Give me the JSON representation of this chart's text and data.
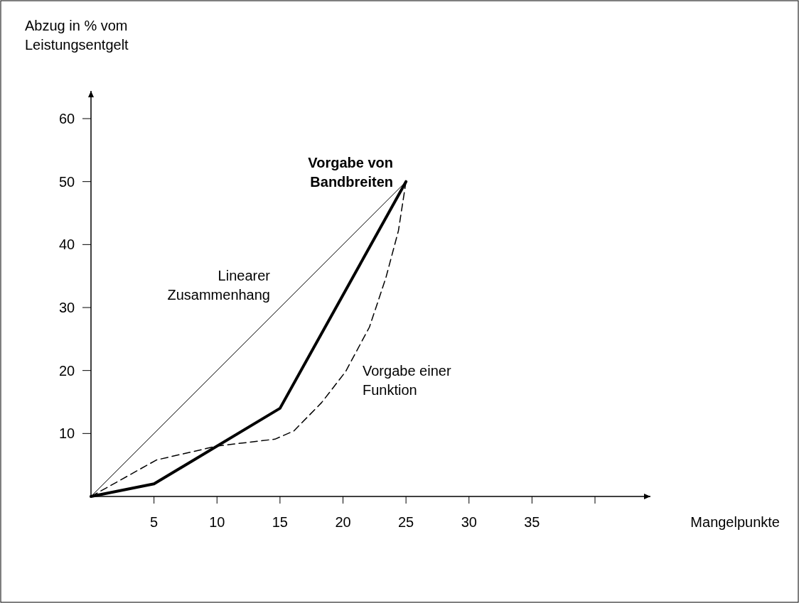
{
  "chart_data": {
    "type": "line",
    "xlabel": "Mangelpunkte",
    "ylabel": "Abzug in % vom\nLeistungsentgelt",
    "xlim": [
      0,
      44.4
    ],
    "ylim": [
      0,
      64.4
    ],
    "xticks": [
      5,
      10,
      15,
      20,
      25,
      30,
      35,
      {
        "value": 40,
        "label": null
      }
    ],
    "yticks": [
      10,
      20,
      30,
      40,
      50,
      60
    ],
    "grid": false,
    "marker": "none",
    "series": [
      {
        "name": "Linearer\nZusammenhang",
        "color": "#000000",
        "line_style": "solid",
        "x": [
          0,
          25
        ],
        "values": [
          0,
          50
        ]
      },
      {
        "name": "Vorgabe von\nBandbreiten",
        "color": "#000000",
        "line_style": "solid",
        "x": [
          0,
          5,
          15,
          25
        ],
        "values": [
          0,
          2,
          14,
          50
        ]
      },
      {
        "name": "Vorgabe einer\nFunktion",
        "color": "#000000",
        "line_style": "dashed",
        "x": [
          0,
          5.2,
          10,
          14.6,
          16.1,
          18.3,
          20.2,
          22.1,
          23.4,
          24.4,
          25
        ],
        "values": [
          0,
          5.8,
          8,
          9.1,
          10.4,
          14.9,
          19.8,
          26.9,
          34.7,
          42.2,
          50
        ]
      }
    ]
  }
}
